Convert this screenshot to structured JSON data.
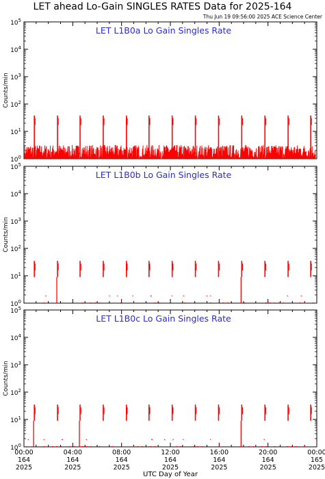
{
  "page": {
    "title": "LET ahead Lo-Gain SINGLES RATES Data for 2025-164",
    "timestamp": "Thu Jun 19 09:56:00 2025 ACE Science Center",
    "xlabel": "UTC Day of Year"
  },
  "chart_data": [
    {
      "type": "line",
      "panel_title": "LET L1B0a Lo Gain Singles Rate",
      "ylabel": "Counts/min",
      "yscale": "log",
      "ylim": [
        1,
        100000
      ],
      "xlim": [
        0,
        24
      ],
      "color": "#ff0000",
      "spikes_hours": [
        0.85,
        2.75,
        4.6,
        6.5,
        8.4,
        10.25,
        12.15,
        14.05,
        15.95,
        17.85,
        19.75,
        21.65,
        23.5
      ],
      "spike_peak": 38,
      "baseline_range": [
        1,
        3
      ]
    },
    {
      "type": "line",
      "panel_title": "LET L1B0b Lo Gain Singles Rate",
      "ylabel": "Counts/min",
      "yscale": "log",
      "ylim": [
        1,
        100000
      ],
      "xlim": [
        0,
        24
      ],
      "color": "#ff0000",
      "spikes_hours": [
        0.85,
        2.75,
        4.6,
        6.5,
        8.4,
        10.25,
        12.15,
        14.05,
        15.95,
        17.85,
        19.75,
        21.65,
        23.5
      ],
      "spike_peak": 35,
      "baseline_range": [
        0.9,
        1.0
      ]
    },
    {
      "type": "line",
      "panel_title": "LET L1B0c Lo Gain Singles Rate",
      "ylabel": "Counts/min",
      "yscale": "log",
      "ylim": [
        1,
        100000
      ],
      "xlim": [
        0,
        24
      ],
      "color": "#ff0000",
      "spikes_hours": [
        0.85,
        2.75,
        4.6,
        6.5,
        8.4,
        10.25,
        12.15,
        14.05,
        15.95,
        17.85,
        19.75,
        21.65,
        23.5
      ],
      "spike_peak": 35,
      "baseline_range": [
        0.9,
        1.0
      ]
    }
  ],
  "xticks": [
    {
      "time": "00:00",
      "day": "164",
      "year": "2025"
    },
    {
      "time": "04:00",
      "day": "164",
      "year": "2025"
    },
    {
      "time": "08:00",
      "day": "164",
      "year": "2025"
    },
    {
      "time": "12:00",
      "day": "164",
      "year": "2025"
    },
    {
      "time": "16:00",
      "day": "164",
      "year": "2025"
    },
    {
      "time": "20:00",
      "day": "164",
      "year": "2025"
    },
    {
      "time": "00:00",
      "day": "165",
      "year": "2025"
    }
  ],
  "yticks": [
    "10^0",
    "10^1",
    "10^2",
    "10^3",
    "10^4",
    "10^5"
  ]
}
